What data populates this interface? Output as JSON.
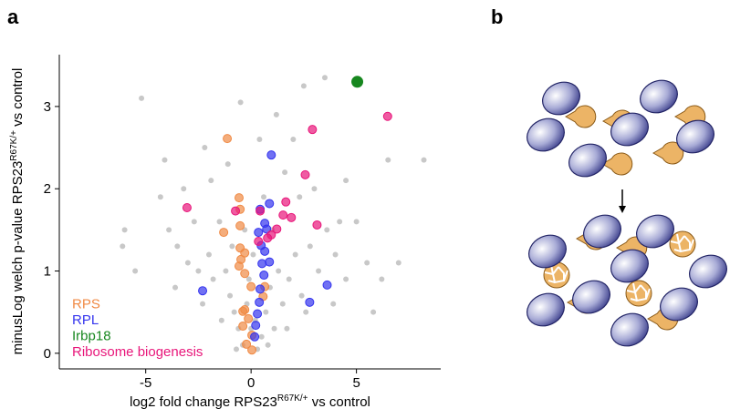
{
  "chart_data": {
    "type": "scatter",
    "panel_label": "a",
    "xlabel": {
      "text": "log2 fold change RPS23",
      "sup": "R67K/+",
      "tail": " vs control"
    },
    "ylabel": {
      "text": "minusLog welch p-value RPS23",
      "sup": "R67K/+",
      "tail": " vs control"
    },
    "xlim": [
      -9.1,
      9.0
    ],
    "ylim": [
      -0.19,
      3.63
    ],
    "xticks": [
      -5,
      0,
      5
    ],
    "yticks": [
      0,
      1,
      2,
      3
    ],
    "legend": "lower left",
    "series": [
      {
        "color": "#c8c8c8",
        "x": [
          -5.2,
          -4.3,
          -3.9,
          -3.5,
          -6.0,
          -6.1,
          -3.0,
          -2.5,
          -2.0,
          -1.5,
          -1.8,
          -1.2,
          -1.0,
          -0.8,
          -0.6,
          -0.4,
          -0.2,
          -0.1,
          0.1,
          0.2,
          0.3,
          0.5,
          0.7,
          0.9,
          1.1,
          1.3,
          1.5,
          1.8,
          2.1,
          2.4,
          2.8,
          3.2,
          3.6,
          4.0,
          4.5,
          5.0,
          5.5,
          6.2,
          7.0,
          8.2,
          6.5,
          4.5,
          3.5,
          2.5,
          2.0,
          1.2,
          -0.5,
          -2.2,
          -4.1,
          -3.2,
          -2.7,
          -1.9,
          1.6,
          2.3,
          3.0,
          4.2,
          -0.9,
          -0.3,
          0.6,
          1.0,
          -1.4,
          -2.3,
          1.7,
          2.6,
          -0.7,
          0.8,
          0.0,
          -3.6,
          3.9,
          5.8,
          -5.5,
          0.4,
          -1.1
        ],
        "values": [
          3.1,
          1.9,
          1.5,
          1.3,
          1.5,
          1.3,
          1.1,
          1.0,
          1.2,
          1.6,
          0.9,
          1.0,
          0.7,
          0.5,
          0.3,
          0.1,
          0.6,
          0.9,
          1.2,
          0.4,
          0.05,
          0.2,
          0.5,
          0.8,
          0.3,
          1.0,
          0.6,
          0.9,
          1.2,
          0.7,
          1.3,
          1.0,
          1.5,
          1.2,
          0.9,
          1.6,
          1.1,
          0.9,
          1.1,
          2.35,
          2.35,
          2.1,
          3.35,
          3.25,
          2.6,
          2.9,
          3.05,
          2.5,
          2.35,
          2.0,
          1.6,
          2.1,
          2.2,
          1.9,
          2.0,
          1.6,
          1.3,
          1.5,
          1.9,
          1.5,
          0.4,
          0.6,
          0.3,
          0.5,
          0.05,
          0.1,
          0.3,
          0.8,
          0.6,
          0.5,
          1.0,
          2.6,
          2.3
        ]
      },
      {
        "name": "RPS",
        "color": "#f08a45",
        "x": [
          -1.13,
          -0.57,
          -0.52,
          -0.52,
          -1.3,
          -0.52,
          -0.48,
          -0.3,
          -0.57,
          -0.3,
          0,
          0.57,
          -0.3,
          -0.13,
          -0.39,
          0.04,
          -0.22,
          0.04,
          0.65,
          -0.39
        ],
        "values": [
          2.61,
          1.89,
          1.75,
          1.55,
          1.47,
          1.28,
          1.14,
          1.22,
          1.06,
          0.97,
          0.81,
          0.69,
          0.53,
          0.42,
          0.33,
          0.22,
          0.11,
          0.04,
          0.81,
          0.51
        ]
      },
      {
        "name": "RPL",
        "color": "#3535ee",
        "x": [
          0.96,
          -2.3,
          3.61,
          2.78,
          0.43,
          0.65,
          0.35,
          0.74,
          0.48,
          0.65,
          0.52,
          0.87,
          0.61,
          0.43,
          0.39,
          0.3,
          0.22,
          0.17,
          0.87
        ],
        "values": [
          2.41,
          0.76,
          0.83,
          0.62,
          1.75,
          1.58,
          1.47,
          1.51,
          1.31,
          1.24,
          1.09,
          1.11,
          0.95,
          0.78,
          0.62,
          0.48,
          0.34,
          0.2,
          1.82
        ]
      },
      {
        "name": "Irbp18",
        "color": "#17871f",
        "x": [
          5.04
        ],
        "values": [
          3.3
        ]
      },
      {
        "name": "Ribosome biogenesis",
        "color": "#e8167a",
        "x": [
          6.48,
          2.91,
          2.57,
          -3.04,
          1.65,
          1.52,
          1.91,
          3.13,
          0.43,
          0.35,
          0.78,
          0.96,
          1.22,
          -0.74
        ],
        "values": [
          2.88,
          2.72,
          2.17,
          1.77,
          1.84,
          1.68,
          1.65,
          1.56,
          1.73,
          1.36,
          1.4,
          1.44,
          1.51,
          1.73
        ]
      }
    ]
  },
  "diagram": {
    "panel_label": "b"
  }
}
